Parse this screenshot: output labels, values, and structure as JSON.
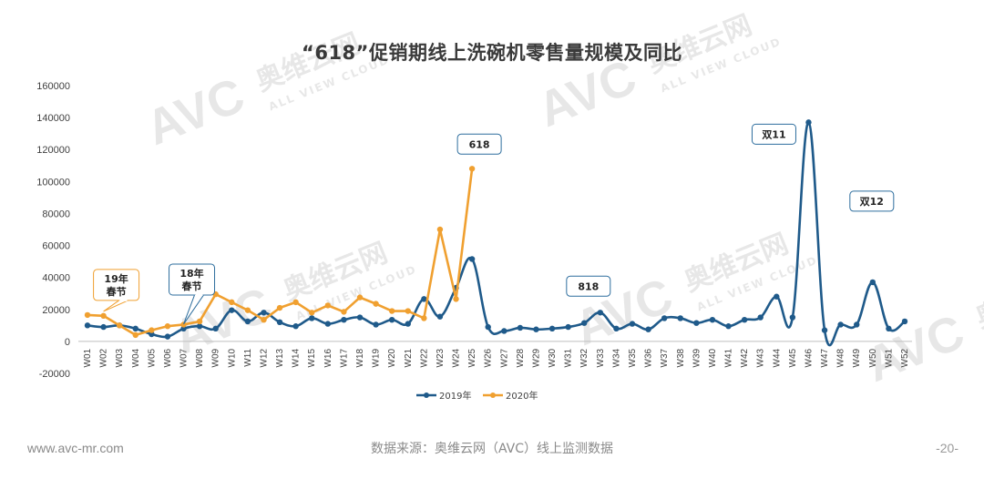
{
  "title": "“618”促销期线上洗碗机零售量规模及同比",
  "footer": {
    "website": "www.avc-mr.com",
    "source": "数据来源：奥维云网（AVC）线上监测数据",
    "page": "-20-"
  },
  "watermark": {
    "brand": "AVC",
    "cn": "奥维云网",
    "en": "ALL VIEW CLOUD"
  },
  "colors": {
    "series_2019": "#1f5a8a",
    "series_2020": "#f0a030",
    "callout_border": "#2e6e9e",
    "callout_border_alt": "#f0a030"
  },
  "callouts": [
    {
      "text": [
        "19年",
        "春节"
      ],
      "x": "W02",
      "value": 16500,
      "style": "alt"
    },
    {
      "text": [
        "18年",
        "春节"
      ],
      "x": "W07",
      "value": 8500,
      "style": "main"
    },
    {
      "text": [
        "618"
      ],
      "x": "W25",
      "value": 108000,
      "style": "main"
    },
    {
      "text": [
        "818"
      ],
      "x": "W33",
      "value": 18000,
      "style": "main"
    },
    {
      "text": [
        "双11"
      ],
      "x": "W46",
      "value": 137000,
      "style": "main"
    },
    {
      "text": [
        "双12"
      ],
      "x": "W50",
      "value": 37000,
      "style": "main"
    }
  ],
  "chart_data": {
    "type": "line",
    "title": "“618”促销期线上洗碗机零售量规模及同比",
    "x": [
      "W01",
      "W02",
      "W03",
      "W04",
      "W05",
      "W06",
      "W07",
      "W08",
      "W09",
      "W10",
      "W11",
      "W12",
      "W13",
      "W14",
      "W15",
      "W16",
      "W17",
      "W18",
      "W19",
      "W20",
      "W21",
      "W22",
      "W23",
      "W24",
      "W25",
      "W26",
      "W27",
      "W28",
      "W29",
      "W30",
      "W31",
      "W32",
      "W33",
      "W34",
      "W35",
      "W36",
      "W37",
      "W38",
      "W39",
      "W40",
      "W41",
      "W42",
      "W43",
      "W44",
      "W45",
      "W46",
      "W47",
      "W48",
      "W49",
      "W50",
      "W51",
      "W52"
    ],
    "ylim": [
      -20000,
      160000
    ],
    "yticks": [
      -20000,
      0,
      20000,
      40000,
      60000,
      80000,
      100000,
      120000,
      140000,
      160000
    ],
    "grid": false,
    "legend_position": "bottom",
    "series": [
      {
        "name": "2019年",
        "values": [
          10000,
          9000,
          10000,
          8000,
          4500,
          3000,
          8000,
          9500,
          8000,
          19500,
          12500,
          18000,
          12000,
          9500,
          14500,
          11000,
          13500,
          15000,
          10500,
          13500,
          11000,
          26500,
          15500,
          33500,
          51500,
          9000,
          6500,
          8500,
          7500,
          8000,
          9000,
          11500,
          18000,
          8000,
          11000,
          7500,
          14500,
          14500,
          11500,
          13500,
          9500,
          13500,
          15000,
          28000,
          15000,
          137000,
          7000,
          10500,
          10500,
          37000,
          8000,
          12500
        ]
      },
      {
        "name": "2020年",
        "values": [
          16500,
          16000,
          10000,
          4000,
          7000,
          9500,
          10500,
          12500,
          29500,
          24500,
          19500,
          13500,
          21000,
          24500,
          18000,
          22500,
          18500,
          27500,
          23500,
          19000,
          19000,
          14500,
          70000,
          26500,
          108000,
          null,
          null,
          null,
          null,
          null,
          null,
          null,
          null,
          null,
          null,
          null,
          null,
          null,
          null,
          null,
          null,
          null,
          null,
          null,
          null,
          null,
          null,
          null,
          null,
          null,
          null,
          null
        ]
      }
    ]
  }
}
